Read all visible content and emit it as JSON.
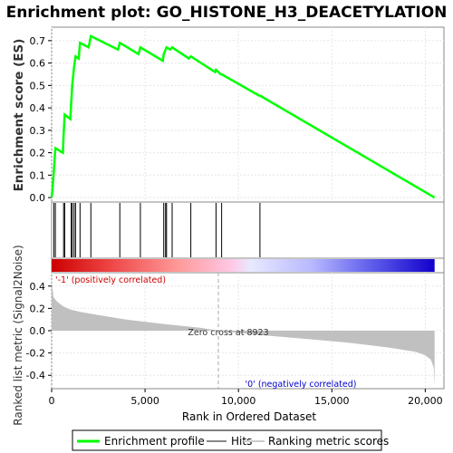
{
  "title": "Enrichment plot: GO_HISTONE_H3_DEACETYLATION",
  "chart_data": [
    {
      "type": "line",
      "panel": "enrichment",
      "ylabel": "Enrichment score (ES)",
      "ylim": [
        -0.02,
        0.76
      ],
      "yticks": [
        "0.0",
        "0.1",
        "0.2",
        "0.3",
        "0.4",
        "0.5",
        "0.6",
        "0.7"
      ],
      "ytick_values": [
        0,
        0.1,
        0.2,
        0.3,
        0.4,
        0.5,
        0.6,
        0.7
      ],
      "xlim": [
        0,
        21000
      ],
      "grid": true,
      "series": [
        {
          "name": "Enrichment profile",
          "color": "#00ff00",
          "x": [
            0,
            60,
            120,
            200,
            600,
            640,
            700,
            1000,
            1050,
            1100,
            1200,
            1280,
            1450,
            1520,
            1980,
            2100,
            3550,
            3650,
            4650,
            4750,
            5950,
            6000,
            6100,
            6150,
            6350,
            6450,
            7350,
            7450,
            8750,
            8800,
            9050,
            9100,
            11100,
            11150,
            20500
          ],
          "y": [
            0.0,
            0.05,
            0.12,
            0.22,
            0.2,
            0.28,
            0.37,
            0.35,
            0.43,
            0.5,
            0.58,
            0.63,
            0.62,
            0.69,
            0.67,
            0.72,
            0.66,
            0.69,
            0.64,
            0.67,
            0.61,
            0.64,
            0.66,
            0.67,
            0.66,
            0.67,
            0.62,
            0.63,
            0.56,
            0.57,
            0.55,
            0.55,
            0.455,
            0.455,
            0.0
          ]
        }
      ]
    },
    {
      "type": "hits",
      "panel": "hits",
      "name": "Hits",
      "positions": [
        120,
        200,
        640,
        700,
        1050,
        1100,
        1200,
        1280,
        1520,
        2100,
        3650,
        4750,
        6000,
        6100,
        6150,
        6450,
        7450,
        8800,
        9100,
        11150
      ]
    },
    {
      "type": "area",
      "panel": "ranked-metric",
      "name": "Ranking metric scores",
      "ylabel": "Ranked list metric (Signal2Noise)",
      "xlabel": "Rank in Ordered Dataset",
      "xlim": [
        0,
        21000
      ],
      "ylim": [
        -0.52,
        0.52
      ],
      "xticks": [
        "0",
        "5,000",
        "10,000",
        "15,000",
        "20,000"
      ],
      "xtick_values": [
        0,
        5000,
        10000,
        15000,
        20000
      ],
      "yticks": [
        "0.4",
        "0.2",
        "0.0",
        "-0.2",
        "-0.4"
      ],
      "ytick_values": [
        0.4,
        0.2,
        0.0,
        -0.2,
        -0.4
      ],
      "x": [
        0,
        100,
        300,
        600,
        1000,
        1500,
        2500,
        4000,
        6000,
        8000,
        8923,
        10000,
        12000,
        14000,
        16000,
        18000,
        19500,
        20000,
        20300,
        20450,
        20500
      ],
      "y": [
        0.45,
        0.3,
        0.26,
        0.22,
        0.19,
        0.17,
        0.14,
        0.1,
        0.06,
        0.025,
        0.0,
        -0.02,
        -0.05,
        -0.08,
        -0.11,
        -0.15,
        -0.19,
        -0.22,
        -0.26,
        -0.33,
        -0.5
      ],
      "zero_cross": 8923,
      "zero_cross_label": "Zero cross at 8923",
      "pos_label": "'-1' (positively correlated)",
      "neg_label": "'0' (negatively correlated)"
    }
  ],
  "colors": {
    "enrichment": "#00ff00",
    "hits": "#000000",
    "metric_fill": "#c0c0c0",
    "pos_label": "#cc0000",
    "neg_label": "#0000cc",
    "zero_line": "#aaaaaa"
  },
  "legend": {
    "items": [
      {
        "label": "Enrichment profile",
        "color": "#00ff00"
      },
      {
        "label": "Hits",
        "color": "#888888"
      },
      {
        "label": "Ranking metric scores",
        "color": "#cccccc"
      }
    ]
  }
}
